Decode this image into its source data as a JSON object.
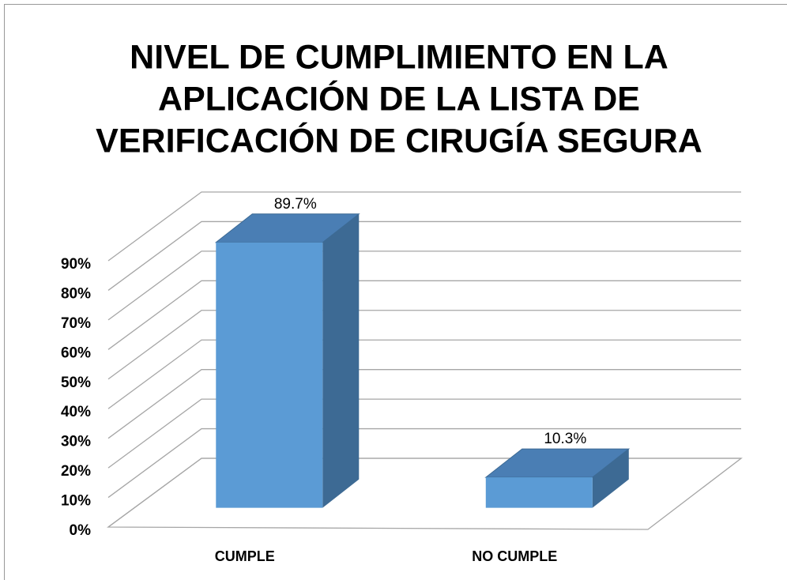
{
  "chart_data": {
    "type": "bar3d",
    "title": [
      "NIVEL DE  CUMPLIMIENTO EN LA",
      "APLICACIÓN  DE LA LISTA DE",
      "VERIFICACIÓN DE CIRUGÍA SEGURA"
    ],
    "categories": [
      "CUMPLE",
      "NO CUMPLE"
    ],
    "values": [
      89.7,
      10.3
    ],
    "value_labels": [
      "89.7%",
      "10.3%"
    ],
    "color": "#5b9bd5",
    "ylim": [
      0,
      90
    ],
    "yticks": [
      {
        "value": 0,
        "label": "0%"
      },
      {
        "value": 10,
        "label": "10%"
      },
      {
        "value": 20,
        "label": "20%"
      },
      {
        "value": 30,
        "label": "30%"
      },
      {
        "value": 40,
        "label": "40%"
      },
      {
        "value": 50,
        "label": "50%"
      },
      {
        "value": 60,
        "label": "60%"
      },
      {
        "value": 70,
        "label": "70%"
      },
      {
        "value": 80,
        "label": "80%"
      },
      {
        "value": 90,
        "label": "90%"
      }
    ],
    "grid": true
  }
}
